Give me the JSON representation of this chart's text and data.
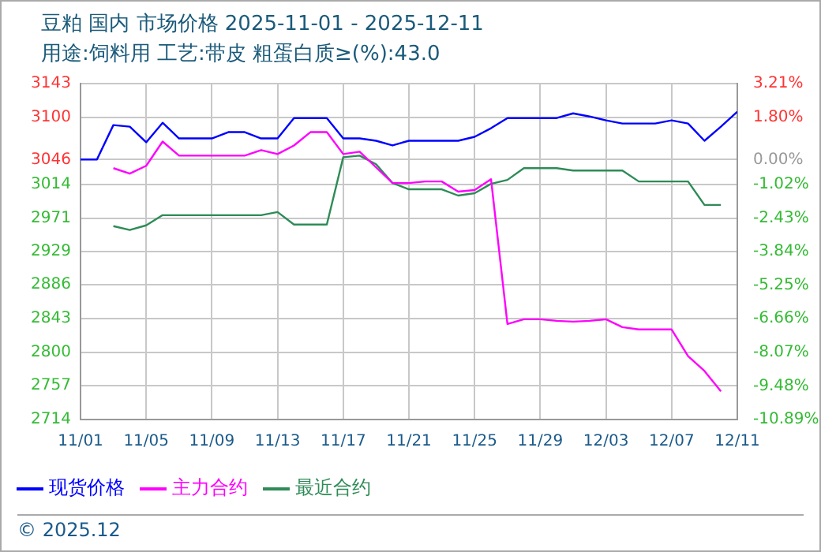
{
  "chart_data": {
    "type": "line",
    "title": "豆粕 国内 市场价格 2025-11-01 - 2025-12-11",
    "subtitle": "用途:饲料用 工艺:带皮 粗蛋白质≥(%):43.0",
    "annotations": [
      "© 2025.12"
    ],
    "x": [
      "2025-11-01",
      "2025-11-02",
      "2025-11-03",
      "2025-11-04",
      "2025-11-05",
      "2025-11-06",
      "2025-11-07",
      "2025-11-08",
      "2025-11-09",
      "2025-11-10",
      "2025-11-11",
      "2025-11-12",
      "2025-11-13",
      "2025-11-14",
      "2025-11-15",
      "2025-11-16",
      "2025-11-17",
      "2025-11-18",
      "2025-11-19",
      "2025-11-20",
      "2025-11-21",
      "2025-11-22",
      "2025-11-23",
      "2025-11-24",
      "2025-11-25",
      "2025-11-26",
      "2025-11-27",
      "2025-11-28",
      "2025-11-29",
      "2025-11-30",
      "2025-12-01",
      "2025-12-02",
      "2025-12-03",
      "2025-12-04",
      "2025-12-05",
      "2025-12-06",
      "2025-12-07",
      "2025-12-08",
      "2025-12-09",
      "2025-12-10",
      "2025-12-11"
    ],
    "series": [
      {
        "name": "现货价格",
        "color": "#0000ff",
        "values": [
          3046,
          3046,
          3090,
          3088,
          3068,
          3093,
          3073,
          3073,
          3073,
          3081,
          3081,
          3073,
          3073,
          3099,
          3099,
          3099,
          3073,
          3073,
          3070,
          3064,
          3070,
          3070,
          3070,
          3070,
          3075,
          3086,
          3099,
          3099,
          3099,
          3099,
          3105,
          3101,
          3096,
          3092,
          3092,
          3092,
          3096,
          3092,
          3070,
          3088,
          3107
        ]
      },
      {
        "name": "主力合约",
        "color": "#ff00ff",
        "values": [
          null,
          null,
          3035,
          3028,
          3038,
          3069,
          3051,
          3051,
          3051,
          3051,
          3051,
          3058,
          3053,
          3064,
          3081,
          3081,
          3053,
          3056,
          3036,
          3016,
          3016,
          3018,
          3018,
          3005,
          3007,
          3021,
          2836,
          2842,
          2842,
          2840,
          2839,
          2840,
          2842,
          2832,
          2829,
          2829,
          2829,
          2795,
          2776,
          2750,
          null
        ]
      },
      {
        "name": "最近合约",
        "color": "#2e8b57",
        "values": [
          null,
          null,
          2961,
          2956,
          2962,
          2975,
          2975,
          2975,
          2975,
          2975,
          2975,
          2975,
          2979,
          2963,
          2963,
          2963,
          3049,
          3051,
          3040,
          3016,
          3008,
          3008,
          3008,
          3000,
          3003,
          3015,
          3020,
          3035,
          3035,
          3035,
          3032,
          3032,
          3032,
          3032,
          3018,
          3018,
          3018,
          3018,
          2988,
          2988,
          null
        ]
      }
    ],
    "xlim": [
      "2025-11-01",
      "2025-12-11"
    ],
    "xticks": [
      {
        "value": "2025-11-01",
        "label": "11/01"
      },
      {
        "value": "2025-11-05",
        "label": "11/05"
      },
      {
        "value": "2025-11-09",
        "label": "11/09"
      },
      {
        "value": "2025-11-13",
        "label": "11/13"
      },
      {
        "value": "2025-11-17",
        "label": "11/17"
      },
      {
        "value": "2025-11-21",
        "label": "11/21"
      },
      {
        "value": "2025-11-25",
        "label": "11/25"
      },
      {
        "value": "2025-11-29",
        "label": "11/29"
      },
      {
        "value": "2025-12-03",
        "label": "12/03"
      },
      {
        "value": "2025-12-07",
        "label": "12/07"
      },
      {
        "value": "2025-12-11",
        "label": "12/11"
      }
    ],
    "ylim": [
      2714,
      3143
    ],
    "yticks": [
      2714,
      2757,
      2800,
      2843,
      2886,
      2929,
      2971,
      3014,
      3046,
      3100,
      3143
    ],
    "y2lim": [
      -10.89,
      3.21
    ],
    "y2ticks": [
      {
        "value": -10.89,
        "label": "-10.89%"
      },
      {
        "value": -9.48,
        "label": "-9.48%"
      },
      {
        "value": -8.07,
        "label": "-8.07%"
      },
      {
        "value": -6.66,
        "label": "-6.66%"
      },
      {
        "value": -5.25,
        "label": "-5.25%"
      },
      {
        "value": -3.84,
        "label": "-3.84%"
      },
      {
        "value": -2.43,
        "label": "-2.43%"
      },
      {
        "value": -1.02,
        "label": "-1.02%"
      },
      {
        "value": 0,
        "label": "0.00%"
      },
      {
        "value": 1.8,
        "label": "1.80%"
      },
      {
        "value": 3.21,
        "label": "3.21%"
      }
    ],
    "grid": true,
    "legend": "bottom left",
    "marker": "none",
    "line_style": "solid"
  }
}
